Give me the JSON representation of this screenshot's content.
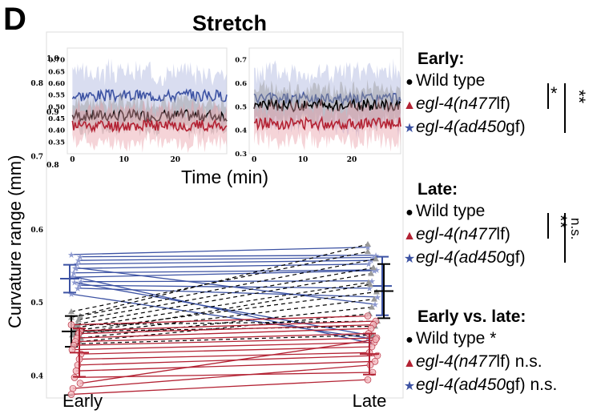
{
  "panel": {
    "letter": "D",
    "title": "Stretch"
  },
  "colors": {
    "wt": "#000000",
    "lf": "#b32233",
    "gf": "#3c52a3",
    "lf_band": "#e9a0a8",
    "gf_band": "#aab3de",
    "wt_band": "#9a9a9a"
  },
  "ylabel": "Curvature range (mm)",
  "inset_xlabel": "Time (min)",
  "legend": {
    "early": {
      "header": "Early:",
      "wt": "Wild type",
      "lf_gene": "egl-4(",
      "lf_allele": "n477",
      "lf_suffix": "lf)",
      "gf_gene": "egl-4(",
      "gf_allele": "ad450",
      "gf_suffix": "gf)",
      "sig_wt_lf": "*",
      "sig_wt_gf": "**"
    },
    "late": {
      "header": "Late:",
      "wt": "Wild type",
      "lf_gene": "egl-4(",
      "lf_allele": "n477",
      "lf_suffix": "lf)",
      "gf_gene": "egl-4(",
      "gf_allele": "ad450",
      "gf_suffix": "gf)",
      "sig_wt_lf": "**",
      "sig_wt_gf": "n.s."
    },
    "ev": {
      "header": "Early vs. late:",
      "wt": "Wild type",
      "wt_sig": "*",
      "lf_gene": "egl-4(",
      "lf_allele": "n477",
      "lf_suffix": "lf)",
      "lf_sig": "n.s.",
      "gf_gene": "egl-4(",
      "gf_allele": "ad450",
      "gf_suffix": "gf)",
      "gf_sig": "n.s."
    }
  },
  "chart_data": [
    {
      "type": "line",
      "name": "main-paired",
      "categories": [
        "Early",
        "Late"
      ],
      "ylim": [
        0.37,
        0.87
      ],
      "yticks": [
        "0.4",
        "0.5",
        "0.6",
        "0.7",
        "0.8"
      ],
      "yticks_values": [
        0.4,
        0.5,
        0.6,
        0.7,
        0.8
      ],
      "series": [
        {
          "group": "gf",
          "pairs": [
            [
              0.566,
              0.576
            ],
            [
              0.563,
              0.565
            ],
            [
              0.558,
              0.562
            ],
            [
              0.553,
              0.558
            ],
            [
              0.547,
              0.553
            ],
            [
              0.541,
              0.545
            ],
            [
              0.535,
              0.544
            ],
            [
              0.529,
              0.53
            ],
            [
              0.524,
              0.52
            ],
            [
              0.52,
              0.508
            ],
            [
              0.548,
              0.498
            ],
            [
              0.528,
              0.455
            ],
            [
              0.536,
              0.445
            ],
            [
              0.512,
              0.452
            ]
          ],
          "mean": [
            0.533,
            0.523
          ],
          "sd": [
            0.019,
            0.04
          ]
        },
        {
          "group": "wt",
          "pairs": [
            [
              0.488,
              0.57
            ],
            [
              0.482,
              0.56
            ],
            [
              0.477,
              0.548
            ],
            [
              0.471,
              0.54
            ],
            [
              0.466,
              0.528
            ],
            [
              0.462,
              0.515
            ],
            [
              0.456,
              0.505
            ],
            [
              0.452,
              0.494
            ],
            [
              0.447,
              0.485
            ],
            [
              0.47,
              0.475
            ],
            [
              0.461,
              0.468
            ],
            [
              0.444,
              0.456
            ],
            [
              0.457,
              0.525
            ],
            [
              0.48,
              0.58
            ]
          ],
          "mean": [
            0.461,
            0.516
          ],
          "sd": [
            0.021,
            0.037
          ]
        },
        {
          "group": "lf",
          "pairs": [
            [
              0.47,
              0.482
            ],
            [
              0.462,
              0.475
            ],
            [
              0.458,
              0.47
            ],
            [
              0.452,
              0.465
            ],
            [
              0.447,
              0.458
            ],
            [
              0.442,
              0.452
            ],
            [
              0.436,
              0.446
            ],
            [
              0.43,
              0.44
            ],
            [
              0.423,
              0.432
            ],
            [
              0.415,
              0.428
            ],
            [
              0.407,
              0.42
            ],
            [
              0.398,
              0.405
            ],
            [
              0.383,
              0.415
            ],
            [
              0.375,
              0.395
            ],
            [
              0.39,
              0.45
            ]
          ],
          "mean": [
            0.432,
            0.43
          ],
          "sd": [
            0.033,
            0.028
          ]
        }
      ]
    },
    {
      "type": "line",
      "name": "inset-early",
      "xlabel": "Time (min)",
      "xlim": [
        -1,
        30
      ],
      "ylim": [
        0.3,
        0.75
      ],
      "xticks": [
        "0",
        "10",
        "20"
      ],
      "xticks_values": [
        0,
        10,
        20
      ],
      "yticks": [
        "0.35",
        "0.40",
        "0.45",
        "0.50",
        "0.55",
        "0.60",
        "0.65",
        "0.70"
      ],
      "yticks_values": [
        0.35,
        0.4,
        0.45,
        0.5,
        0.55,
        0.6,
        0.65,
        0.7
      ],
      "extra_ticks": [
        "1.0",
        "0.9",
        "0.8"
      ],
      "series": [
        {
          "group": "gf",
          "mean": 0.548,
          "band": 0.1,
          "seed": 3
        },
        {
          "group": "wt",
          "mean": 0.462,
          "band": 0.06,
          "seed": 7
        },
        {
          "group": "lf",
          "mean": 0.42,
          "band": 0.07,
          "seed": 11
        }
      ]
    },
    {
      "type": "line",
      "name": "inset-late",
      "xlim": [
        -1,
        30
      ],
      "ylim": [
        0.3,
        0.75
      ],
      "xticks": [
        "0",
        "10",
        "20"
      ],
      "xticks_values": [
        0,
        10,
        20
      ],
      "yticks": [
        "0.3",
        "0.4",
        "0.5",
        "0.6",
        "0.7"
      ],
      "yticks_values": [
        0.3,
        0.4,
        0.5,
        0.6,
        0.7
      ],
      "series": [
        {
          "group": "gf",
          "mean": 0.535,
          "band": 0.11,
          "seed": 5
        },
        {
          "group": "wt",
          "mean": 0.505,
          "band": 0.07,
          "seed": 9
        },
        {
          "group": "lf",
          "mean": 0.43,
          "band": 0.07,
          "seed": 13
        }
      ]
    }
  ]
}
